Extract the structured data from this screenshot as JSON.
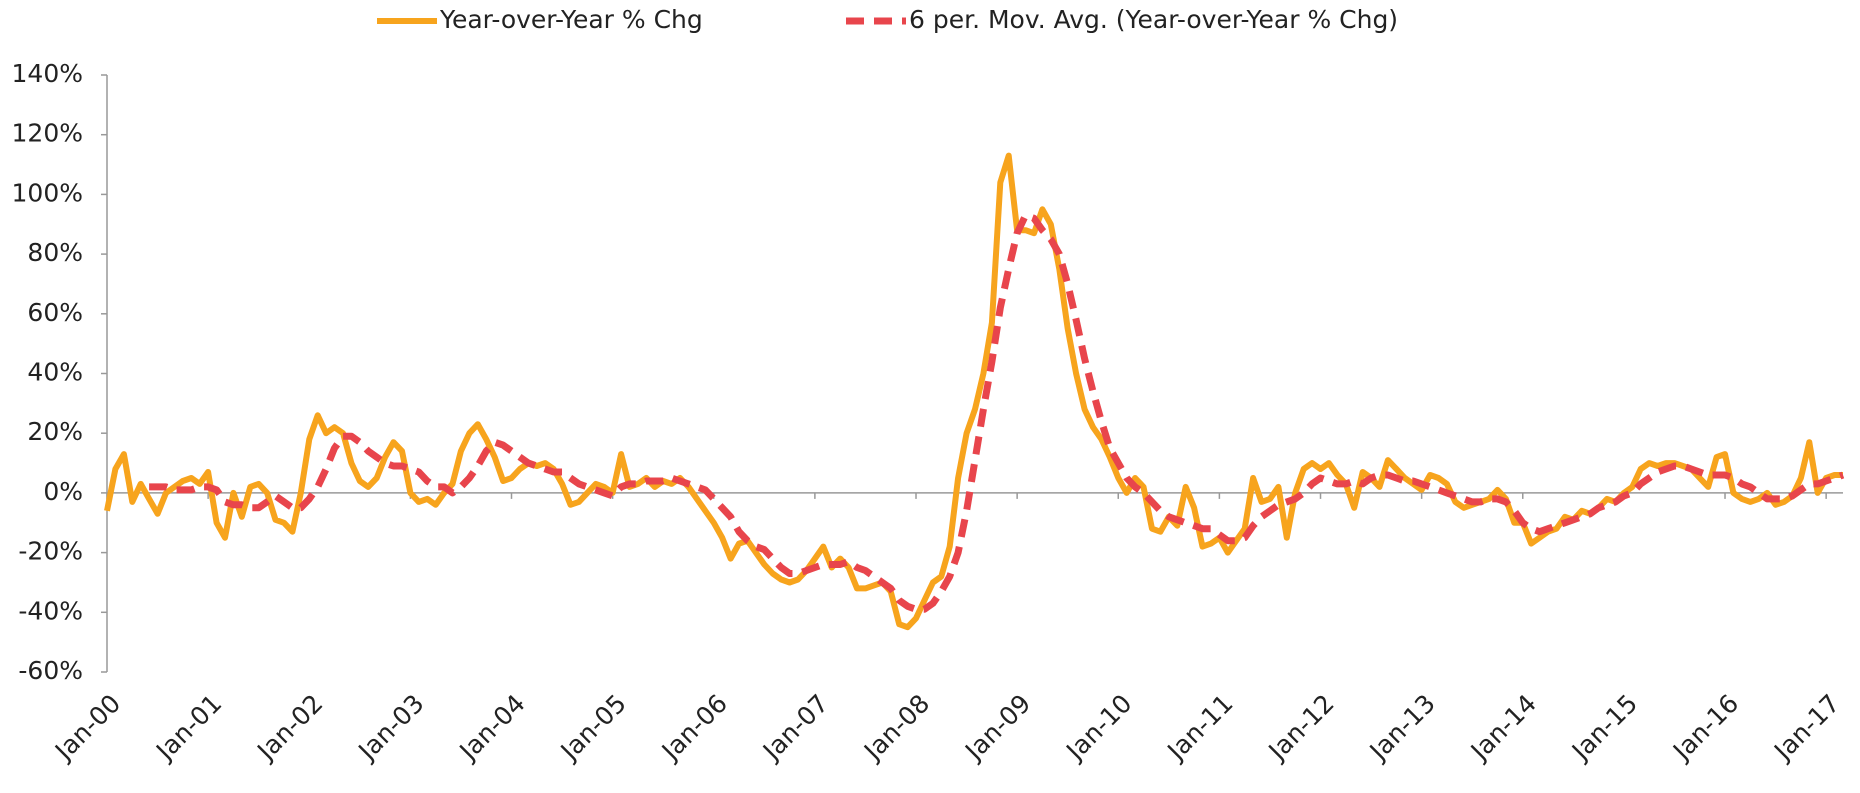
{
  "chart_data": {
    "type": "line",
    "categories": [
      "Jan-00",
      null,
      null,
      null,
      null,
      null,
      null,
      null,
      null,
      null,
      null,
      null,
      "Jan-01",
      null,
      null,
      null,
      null,
      null,
      null,
      null,
      null,
      null,
      null,
      null,
      "Jan-02",
      null,
      null,
      null,
      null,
      null,
      null,
      null,
      null,
      null,
      null,
      null,
      "Jan-03",
      null,
      null,
      null,
      null,
      null,
      null,
      null,
      null,
      null,
      null,
      null,
      "Jan-04",
      null,
      null,
      null,
      null,
      null,
      null,
      null,
      null,
      null,
      null,
      null,
      "Jan-05",
      null,
      null,
      null,
      null,
      null,
      null,
      null,
      null,
      null,
      null,
      null,
      "Jan-06",
      null,
      null,
      null,
      null,
      null,
      null,
      null,
      null,
      null,
      null,
      null,
      "Jan-07",
      null,
      null,
      null,
      null,
      null,
      null,
      null,
      null,
      null,
      null,
      null,
      "Jan-08",
      null,
      null,
      null,
      null,
      null,
      null,
      null,
      null,
      null,
      null,
      null,
      "Jan-09",
      null,
      null,
      null,
      null,
      null,
      null,
      null,
      null,
      null,
      null,
      null,
      "Jan-10",
      null,
      null,
      null,
      null,
      null,
      null,
      null,
      null,
      null,
      null,
      null,
      "Jan-11",
      null,
      null,
      null,
      null,
      null,
      null,
      null,
      null,
      null,
      null,
      null,
      "Jan-12",
      null,
      null,
      null,
      null,
      null,
      null,
      null,
      null,
      null,
      null,
      null,
      "Jan-13",
      null,
      null,
      null,
      null,
      null,
      null,
      null,
      null,
      null,
      null,
      null,
      "Jan-14",
      null,
      null,
      null,
      null,
      null,
      null,
      null,
      null,
      null,
      null,
      null,
      "Jan-15",
      null,
      null,
      null,
      null,
      null,
      null,
      null,
      null,
      null,
      null,
      null,
      "Jan-16",
      null,
      null,
      null,
      null,
      null,
      null,
      null,
      null,
      null,
      null,
      null,
      "Jan-17",
      null,
      null
    ],
    "series": [
      {
        "name": "Year-over-Year % Chg",
        "color": "#f7a41d",
        "dashed": false,
        "values": [
          -6,
          8,
          13,
          -3,
          3,
          -2,
          -7,
          0,
          2,
          4,
          5,
          3,
          7,
          -10,
          -15,
          0,
          -8,
          2,
          3,
          0,
          -9,
          -10,
          -13,
          0,
          18,
          26,
          20,
          22,
          20,
          10,
          4,
          2,
          5,
          12,
          17,
          14,
          0,
          -3,
          -2,
          -4,
          0,
          3,
          14,
          20,
          23,
          18,
          12,
          4,
          5,
          8,
          10,
          9,
          10,
          8,
          3,
          -4,
          -3,
          0,
          3,
          2,
          0,
          13,
          2,
          3,
          5,
          2,
          4,
          3,
          5,
          2,
          -2,
          -6,
          -10,
          -15,
          -22,
          -17,
          -16,
          -20,
          -24,
          -27,
          -29,
          -30,
          -29,
          -26,
          -22,
          -18,
          -25,
          -22,
          -25,
          -32,
          -32,
          -31,
          -30,
          -33,
          -44,
          -45,
          -42,
          -36,
          -30,
          -28,
          -18,
          5,
          20,
          28,
          40,
          57,
          104,
          113,
          88,
          88,
          87,
          95,
          90,
          75,
          55,
          40,
          28,
          22,
          18,
          12,
          5,
          0,
          5,
          2,
          -12,
          -13,
          -8,
          -11,
          2,
          -5,
          -18,
          -17,
          -15,
          -20,
          -16,
          -12,
          5,
          -3,
          -2,
          2,
          -15,
          0,
          8,
          10,
          8,
          10,
          6,
          3,
          -5,
          7,
          5,
          2,
          11,
          8,
          5,
          3,
          1,
          6,
          5,
          3,
          -3,
          -5,
          -4,
          -3,
          -2,
          1,
          -2,
          -10,
          -10,
          -17,
          -15,
          -13,
          -12,
          -8,
          -9,
          -6,
          -7,
          -5,
          -2,
          -3,
          0,
          2,
          8,
          10,
          9,
          10,
          10,
          9,
          8,
          5,
          2,
          12,
          13,
          0,
          -2,
          -3,
          -2,
          0,
          -4,
          -3,
          -1,
          5,
          17,
          0,
          5,
          6,
          6
        ]
      },
      {
        "name": "6 per. Mov. Avg. (Year-over-Year % Chg)",
        "color": "#e8454c",
        "dashed": true,
        "values": [
          null,
          null,
          null,
          null,
          null,
          2,
          2,
          2,
          1,
          1,
          1,
          2,
          2,
          1,
          -3,
          -4,
          -4,
          -5,
          -5,
          -3,
          -1,
          -3,
          -5,
          -5,
          -2,
          2,
          8,
          15,
          19,
          19,
          17,
          14,
          12,
          10,
          9,
          9,
          8,
          7,
          4,
          2,
          2,
          0,
          2,
          5,
          9,
          14,
          17,
          16,
          14,
          12,
          10,
          9,
          8,
          7,
          7,
          5,
          3,
          2,
          1,
          0,
          -1,
          2,
          3,
          3,
          4,
          4,
          4,
          5,
          4,
          3,
          2,
          1,
          -2,
          -5,
          -8,
          -13,
          -16,
          -18,
          -19,
          -22,
          -25,
          -27,
          -27,
          -26,
          -25,
          -24,
          -24,
          -24,
          -23,
          -25,
          -26,
          -28,
          -30,
          -32,
          -36,
          -38,
          -39,
          -39,
          -37,
          -33,
          -28,
          -20,
          -6,
          11,
          28,
          44,
          62,
          75,
          87,
          93,
          92,
          88,
          85,
          80,
          70,
          58,
          45,
          34,
          24,
          15,
          10,
          5,
          2,
          0,
          -3,
          -6,
          -8,
          -9,
          -10,
          -11,
          -12,
          -12,
          -14,
          -16,
          -16,
          -15,
          -11,
          -8,
          -6,
          -4,
          -3,
          -2,
          0,
          3,
          5,
          4,
          3,
          3,
          4,
          3,
          5,
          6,
          6,
          5,
          4,
          4,
          3,
          2,
          1,
          0,
          -1,
          -2,
          -3,
          -3,
          -2,
          -2,
          -3,
          -6,
          -10,
          -12,
          -13,
          -12,
          -11,
          -10,
          -9,
          -8,
          -7,
          -5,
          -4,
          -3,
          -1,
          0,
          3,
          5,
          7,
          8,
          9,
          9,
          8,
          7,
          6,
          6,
          6,
          5,
          3,
          2,
          0,
          -2,
          -2,
          -2,
          -1,
          1,
          3,
          3,
          4,
          5,
          6
        ]
      }
    ],
    "ylim": [
      -60,
      140
    ],
    "yticks": [
      {
        "value": -60,
        "label": "-60%"
      },
      {
        "value": -40,
        "label": "-40%"
      },
      {
        "value": -20,
        "label": "-20%"
      },
      {
        "value": 0,
        "label": "0%"
      },
      {
        "value": 20,
        "label": "20%"
      },
      {
        "value": 40,
        "label": "40%"
      },
      {
        "value": 60,
        "label": "60%"
      },
      {
        "value": 80,
        "label": "80%"
      },
      {
        "value": 100,
        "label": "100%"
      },
      {
        "value": 120,
        "label": "120%"
      },
      {
        "value": 140,
        "label": "140%"
      }
    ],
    "legend": "top",
    "grid": false
  }
}
